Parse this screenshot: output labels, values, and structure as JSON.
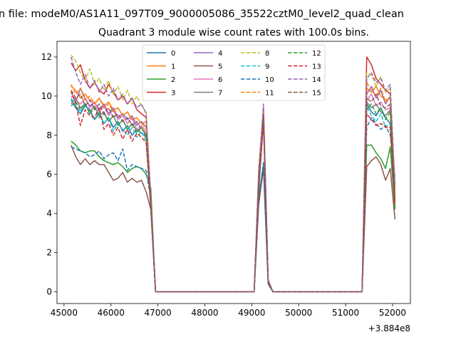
{
  "figure": {
    "suptitle": "n file: modeM0/AS1A11_097T09_9000005086_35522cztM0_level2_quad_clean"
  },
  "chart_data": {
    "type": "line",
    "title": "Quadrant 3 module wise count rates with 100.0s bins.",
    "xlabel": "",
    "ylabel": "",
    "x_offset_label": "+3.884e8",
    "xlim": [
      44850,
      52380
    ],
    "ylim": [
      -0.6,
      12.8
    ],
    "x_ticks": [
      45000,
      46000,
      47000,
      48000,
      49000,
      50000,
      51000,
      52000
    ],
    "y_ticks": [
      0,
      2,
      4,
      6,
      8,
      10,
      12
    ],
    "grid": false,
    "legend": {
      "placement": "top-center",
      "columns": 4
    },
    "x": [
      45150,
      45250,
      45350,
      45450,
      45550,
      45650,
      45750,
      45850,
      45950,
      46050,
      46150,
      46250,
      46350,
      46450,
      46550,
      46650,
      46750,
      46850,
      46950,
      47050,
      47150,
      47250,
      47350,
      47450,
      47550,
      47650,
      47750,
      47850,
      47950,
      48050,
      48150,
      48250,
      48350,
      48450,
      48550,
      48650,
      48750,
      48850,
      48950,
      49050,
      49150,
      49250,
      49350,
      49450,
      49550,
      49650,
      49750,
      49850,
      49950,
      50050,
      50150,
      50250,
      50350,
      50450,
      50550,
      50650,
      50750,
      50850,
      50950,
      51050,
      51150,
      51250,
      51350,
      51450,
      51550,
      51650,
      51750,
      51850,
      51950,
      52050
    ],
    "series": [
      {
        "name": "0",
        "color": "#1f77b4",
        "dashed": false,
        "values": [
          9.8,
          9.4,
          9.1,
          9.5,
          9.3,
          8.8,
          9.1,
          8.6,
          8.9,
          8.4,
          8.7,
          8.2,
          8.5,
          8.0,
          8.3,
          8.1,
          7.9,
          4.2,
          0,
          0,
          0,
          0,
          0,
          0,
          0,
          0,
          0,
          0,
          0,
          0,
          0,
          0,
          0,
          0,
          0,
          0,
          0,
          0,
          0,
          0,
          5.2,
          8.8,
          0.5,
          0,
          0,
          0,
          0,
          0,
          0,
          0,
          0,
          0,
          0,
          0,
          0,
          0,
          0,
          0,
          0,
          0,
          0,
          0,
          0,
          9.6,
          9.2,
          9.0,
          9.4,
          8.9,
          8.6,
          4.3
        ]
      },
      {
        "name": "1",
        "color": "#ff7f0e",
        "dashed": false,
        "values": [
          10.5,
          10.3,
          9.9,
          10.1,
          9.8,
          9.6,
          9.9,
          9.5,
          9.7,
          9.3,
          9.4,
          9.0,
          9.2,
          8.8,
          8.9,
          8.6,
          8.7,
          4.8,
          0,
          0,
          0,
          0,
          0,
          0,
          0,
          0,
          0,
          0,
          0,
          0,
          0,
          0,
          0,
          0,
          0,
          0,
          0,
          0,
          0,
          0,
          5.6,
          9.1,
          0.6,
          0,
          0,
          0,
          0,
          0,
          0,
          0,
          0,
          0,
          0,
          0,
          0,
          0,
          0,
          0,
          0,
          0,
          0,
          0,
          0,
          10.4,
          10.2,
          10.5,
          10.0,
          9.8,
          9.9,
          5.2
        ]
      },
      {
        "name": "2",
        "color": "#2ca02c",
        "dashed": false,
        "values": [
          7.7,
          7.5,
          7.2,
          7.1,
          7.2,
          7.2,
          6.9,
          6.7,
          6.6,
          6.5,
          6.6,
          6.4,
          6.1,
          6.3,
          6.4,
          6.3,
          6.0,
          5.3,
          0,
          0,
          0,
          0,
          0,
          0,
          0,
          0,
          0,
          0,
          0,
          0,
          0,
          0,
          0,
          0,
          0,
          0,
          0,
          0,
          0,
          0,
          4.9,
          6.5,
          0.4,
          0,
          0,
          0,
          0,
          0,
          0,
          0,
          0,
          0,
          0,
          0,
          0,
          0,
          0,
          0,
          0,
          0,
          0,
          0,
          0,
          7.5,
          7.5,
          7.1,
          6.8,
          6.3,
          7.4,
          4.2
        ]
      },
      {
        "name": "3",
        "color": "#d62728",
        "dashed": false,
        "values": [
          11.7,
          11.3,
          11.6,
          10.8,
          10.4,
          10.7,
          10.3,
          10.1,
          10.6,
          10.2,
          9.8,
          10.0,
          9.6,
          9.9,
          9.3,
          9.1,
          8.9,
          4.6,
          0,
          0,
          0,
          0,
          0,
          0,
          0,
          0,
          0,
          0,
          0,
          0,
          0,
          0,
          0,
          0,
          0,
          0,
          0,
          0,
          0,
          0,
          6.3,
          9.4,
          0.6,
          0,
          0,
          0,
          0,
          0,
          0,
          0,
          0,
          0,
          0,
          0,
          0,
          0,
          0,
          0,
          0,
          0,
          0,
          0,
          0,
          12.0,
          11.6,
          10.9,
          10.6,
          10.3,
          10.1,
          5.5
        ]
      },
      {
        "name": "4",
        "color": "#9467bd",
        "dashed": false,
        "values": [
          10.2,
          9.7,
          10.4,
          9.9,
          9.5,
          9.7,
          9.3,
          9.6,
          9.1,
          9.4,
          8.9,
          9.1,
          8.8,
          9.0,
          8.5,
          8.7,
          8.4,
          4.5,
          0,
          0,
          0,
          0,
          0,
          0,
          0,
          0,
          0,
          0,
          0,
          0,
          0,
          0,
          0,
          0,
          0,
          0,
          0,
          0,
          0,
          0,
          5.8,
          9.2,
          0.5,
          0,
          0,
          0,
          0,
          0,
          0,
          0,
          0,
          0,
          0,
          0,
          0,
          0,
          0,
          0,
          0,
          0,
          0,
          0,
          0,
          10.1,
          10.5,
          9.9,
          10.3,
          9.6,
          10.0,
          5.0
        ]
      },
      {
        "name": "5",
        "color": "#8c564b",
        "dashed": false,
        "values": [
          7.5,
          6.9,
          6.5,
          6.8,
          6.5,
          6.7,
          6.5,
          6.5,
          6.1,
          5.7,
          5.8,
          6.1,
          5.6,
          5.8,
          5.6,
          5.7,
          5.1,
          4.2,
          0,
          0,
          0,
          0,
          0,
          0,
          0,
          0,
          0,
          0,
          0,
          0,
          0,
          0,
          0,
          0,
          0,
          0,
          0,
          0,
          0,
          0,
          4.5,
          6.3,
          0.4,
          0,
          0,
          0,
          0,
          0,
          0,
          0,
          0,
          0,
          0,
          0,
          0,
          0,
          0,
          0,
          0,
          0,
          0,
          0,
          0,
          6.4,
          6.7,
          6.9,
          6.5,
          5.7,
          6.3,
          3.7
        ]
      },
      {
        "name": "6",
        "color": "#e377c2",
        "dashed": false,
        "values": [
          10.0,
          9.8,
          9.6,
          9.9,
          9.4,
          9.7,
          9.2,
          9.5,
          9.0,
          9.3,
          8.8,
          9.0,
          8.6,
          8.9,
          8.3,
          8.5,
          8.2,
          4.6,
          0,
          0,
          0,
          0,
          0,
          0,
          0,
          0,
          0,
          0,
          0,
          0,
          0,
          0,
          0,
          0,
          0,
          0,
          0,
          0,
          0,
          0,
          5.9,
          9.0,
          0.5,
          0,
          0,
          0,
          0,
          0,
          0,
          0,
          0,
          0,
          0,
          0,
          0,
          0,
          0,
          0,
          0,
          0,
          0,
          0,
          0,
          9.8,
          10.1,
          9.5,
          9.7,
          9.3,
          9.4,
          4.9
        ]
      },
      {
        "name": "7",
        "color": "#7f7f7f",
        "dashed": false,
        "values": [
          9.6,
          9.9,
          9.4,
          9.6,
          9.2,
          9.5,
          9.0,
          9.2,
          8.7,
          9.0,
          8.5,
          8.8,
          8.3,
          8.6,
          8.2,
          8.4,
          8.0,
          4.4,
          0,
          0,
          0,
          0,
          0,
          0,
          0,
          0,
          0,
          0,
          0,
          0,
          0,
          0,
          0,
          0,
          0,
          0,
          0,
          0,
          0,
          0,
          5.7,
          8.9,
          0.5,
          0,
          0,
          0,
          0,
          0,
          0,
          0,
          0,
          0,
          0,
          0,
          0,
          0,
          0,
          0,
          0,
          0,
          0,
          0,
          0,
          9.7,
          9.4,
          9.6,
          9.2,
          9.0,
          9.3,
          4.8
        ]
      },
      {
        "name": "8",
        "color": "#bcbd22",
        "dashed": true,
        "values": [
          12.1,
          11.8,
          11.2,
          10.8,
          11.4,
          10.6,
          10.9,
          10.3,
          10.8,
          10.1,
          10.5,
          9.8,
          10.3,
          9.6,
          10.0,
          9.5,
          9.2,
          4.8,
          0,
          0,
          0,
          0,
          0,
          0,
          0,
          0,
          0,
          0,
          0,
          0,
          0,
          0,
          0,
          0,
          0,
          0,
          0,
          0,
          0,
          0,
          6.2,
          9.5,
          0.6,
          0,
          0,
          0,
          0,
          0,
          0,
          0,
          0,
          0,
          0,
          0,
          0,
          0,
          0,
          0,
          0,
          0,
          0,
          0,
          0,
          11.2,
          11.1,
          10.5,
          11.0,
          10.2,
          10.4,
          5.3
        ]
      },
      {
        "name": "9",
        "color": "#17becf",
        "dashed": true,
        "values": [
          9.9,
          9.5,
          9.2,
          9.6,
          9.1,
          8.8,
          9.2,
          8.6,
          8.9,
          8.2,
          8.6,
          8.3,
          8.0,
          8.4,
          7.9,
          8.2,
          7.7,
          4.3,
          0,
          0,
          0,
          0,
          0,
          0,
          0,
          0,
          0,
          0,
          0,
          0,
          0,
          0,
          0,
          0,
          0,
          0,
          0,
          0,
          0,
          0,
          5.6,
          8.7,
          0.5,
          0,
          0,
          0,
          0,
          0,
          0,
          0,
          0,
          0,
          0,
          0,
          0,
          0,
          0,
          0,
          0,
          0,
          0,
          0,
          0,
          9.5,
          9.0,
          8.7,
          9.1,
          8.4,
          8.6,
          5.4
        ]
      },
      {
        "name": "10",
        "color": "#1f77b4",
        "dashed": true,
        "values": [
          7.4,
          7.3,
          7.2,
          7.1,
          6.9,
          7.0,
          7.2,
          6.8,
          7.0,
          7.1,
          6.7,
          7.3,
          6.2,
          6.5,
          6.4,
          6.3,
          6.2,
          4.7,
          0,
          0,
          0,
          0,
          0,
          0,
          0,
          0,
          0,
          0,
          0,
          0,
          0,
          0,
          0,
          0,
          0,
          0,
          0,
          0,
          0,
          0,
          4.8,
          6.6,
          0.4,
          0,
          0,
          0,
          0,
          0,
          0,
          0,
          0,
          0,
          0,
          0,
          0,
          0,
          0,
          0,
          0,
          0,
          0,
          0,
          0,
          8.4,
          8.9,
          8.6,
          8.3,
          8.5,
          8.0,
          5.8
        ]
      },
      {
        "name": "11",
        "color": "#ff7f0e",
        "dashed": true,
        "values": [
          10.6,
          10.1,
          10.4,
          9.8,
          10.0,
          9.6,
          9.9,
          9.4,
          9.6,
          9.2,
          9.4,
          9.0,
          9.2,
          8.8,
          8.9,
          8.6,
          8.4,
          4.7,
          0,
          0,
          0,
          0,
          0,
          0,
          0,
          0,
          0,
          0,
          0,
          0,
          0,
          0,
          0,
          0,
          0,
          0,
          0,
          0,
          0,
          0,
          5.8,
          9.2,
          0.5,
          0,
          0,
          0,
          0,
          0,
          0,
          0,
          0,
          0,
          0,
          0,
          0,
          0,
          0,
          0,
          0,
          0,
          0,
          0,
          0,
          10.7,
          10.3,
          10.0,
          10.4,
          9.7,
          9.9,
          5.1
        ]
      },
      {
        "name": "12",
        "color": "#2ca02c",
        "dashed": true,
        "values": [
          9.5,
          9.7,
          9.3,
          9.6,
          9.1,
          9.4,
          8.9,
          9.1,
          8.7,
          9.0,
          8.5,
          8.8,
          8.3,
          8.6,
          8.1,
          8.4,
          7.9,
          4.4,
          0,
          0,
          0,
          0,
          0,
          0,
          0,
          0,
          0,
          0,
          0,
          0,
          0,
          0,
          0,
          0,
          0,
          0,
          0,
          0,
          0,
          0,
          5.7,
          8.9,
          0.5,
          0,
          0,
          0,
          0,
          0,
          0,
          0,
          0,
          0,
          0,
          0,
          0,
          0,
          0,
          0,
          0,
          0,
          0,
          0,
          0,
          9.3,
          9.6,
          9.1,
          9.4,
          8.8,
          9.2,
          4.6
        ]
      },
      {
        "name": "13",
        "color": "#d62728",
        "dashed": true,
        "values": [
          10.3,
          9.6,
          8.5,
          9.3,
          9.0,
          8.9,
          9.4,
          8.3,
          8.6,
          8.0,
          8.4,
          7.8,
          8.3,
          7.7,
          8.1,
          7.9,
          7.6,
          4.3,
          0,
          0,
          0,
          0,
          0,
          0,
          0,
          0,
          0,
          0,
          0,
          0,
          0,
          0,
          0,
          0,
          0,
          0,
          0,
          0,
          0,
          0,
          5.5,
          8.6,
          0.5,
          0,
          0,
          0,
          0,
          0,
          0,
          0,
          0,
          0,
          0,
          0,
          0,
          0,
          0,
          0,
          0,
          0,
          0,
          0,
          0,
          9.1,
          8.8,
          8.5,
          8.6,
          8.4,
          8.4,
          4.5
        ]
      },
      {
        "name": "14",
        "color": "#9467bd",
        "dashed": true,
        "values": [
          12.0,
          11.2,
          10.6,
          11.1,
          10.4,
          10.8,
          10.2,
          10.6,
          10.0,
          10.4,
          9.8,
          10.1,
          9.6,
          9.9,
          9.4,
          9.6,
          9.1,
          4.9,
          0,
          0,
          0,
          0,
          0,
          0,
          0,
          0,
          0,
          0,
          0,
          0,
          0,
          0,
          0,
          0,
          0,
          0,
          0,
          0,
          0,
          0,
          6.1,
          9.6,
          0.6,
          0,
          0,
          0,
          0,
          0,
          0,
          0,
          0,
          0,
          0,
          0,
          0,
          0,
          0,
          0,
          0,
          0,
          0,
          0,
          0,
          10.9,
          11.2,
          10.7,
          10.9,
          10.3,
          10.6,
          5.3
        ]
      },
      {
        "name": "15",
        "color": "#8c564b",
        "dashed": true,
        "values": [
          10.3,
          9.9,
          10.1,
          9.5,
          9.8,
          9.3,
          9.6,
          9.1,
          9.4,
          8.9,
          9.1,
          8.7,
          8.9,
          8.5,
          8.7,
          8.3,
          8.1,
          4.5,
          0,
          0,
          0,
          0,
          0,
          0,
          0,
          0,
          0,
          0,
          0,
          0,
          0,
          0,
          0,
          0,
          0,
          0,
          0,
          0,
          0,
          0,
          5.8,
          9.0,
          0.5,
          0,
          0,
          0,
          0,
          0,
          0,
          0,
          0,
          0,
          0,
          0,
          0,
          0,
          0,
          0,
          0,
          0,
          0,
          0,
          0,
          9.9,
          9.7,
          10.1,
          9.5,
          9.4,
          9.6,
          4.7
        ]
      }
    ]
  }
}
